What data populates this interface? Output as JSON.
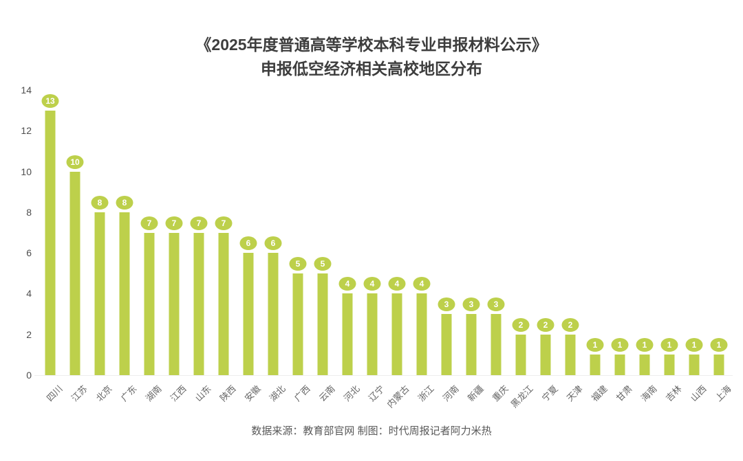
{
  "title": {
    "line1": "《2025年度普通高等学校本科专业申报材料公示》",
    "line2": "申报低空经济相关高校地区分布"
  },
  "footer": "数据来源：教育部官网 制图：时代周报记者阿力米热",
  "colors": {
    "bar": "#bdd04b",
    "badge_text": "#ffffff",
    "title": "#3d3d3d",
    "axis_label": "#4d4d4d",
    "category_label": "#666666",
    "footer": "#595959",
    "baseline": "#ededed"
  },
  "chart_data": {
    "type": "bar",
    "title": "《2025年度普通高等学校本科专业申报材料公示》申报低空经济相关高校地区分布",
    "categories": [
      "四川",
      "江苏",
      "北京",
      "广东",
      "湖南",
      "江西",
      "山东",
      "陕西",
      "安徽",
      "湖北",
      "广西",
      "云南",
      "河北",
      "辽宁",
      "内蒙古",
      "浙江",
      "河南",
      "新疆",
      "重庆",
      "黑龙江",
      "宁夏",
      "天津",
      "福建",
      "甘肃",
      "海南",
      "吉林",
      "山西",
      "上海"
    ],
    "values": [
      13,
      10,
      8,
      8,
      7,
      7,
      7,
      7,
      6,
      6,
      5,
      5,
      4,
      4,
      4,
      4,
      3,
      3,
      3,
      2,
      2,
      2,
      1,
      1,
      1,
      1,
      1,
      1
    ],
    "xlabel": "",
    "ylabel": "",
    "ylim": [
      0,
      14
    ],
    "yticks": [
      0,
      2,
      4,
      6,
      8,
      10,
      12,
      14
    ],
    "grid": false,
    "legend": false,
    "value_labels": "badge above each bar"
  }
}
